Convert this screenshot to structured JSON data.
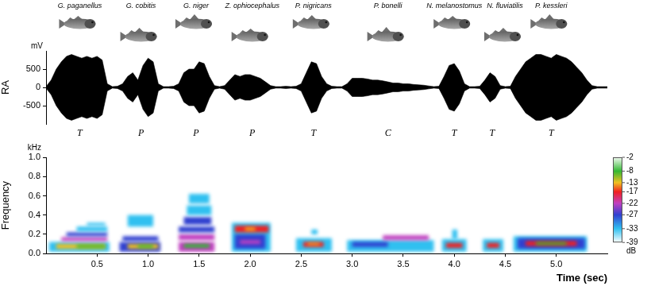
{
  "chart_data": [
    {
      "type": "line",
      "y_label": "RA",
      "unit": "mV",
      "xlim": [
        0,
        5.5
      ],
      "ylim": [
        -1000,
        1000
      ],
      "yticks": [
        -500,
        0,
        500
      ],
      "grid": false,
      "calls": [
        {
          "species": "G. paganellus",
          "call": "T",
          "t": 0.33
        },
        {
          "species": "G. cobitis",
          "call": "P",
          "t": 0.93
        },
        {
          "species": "G. niger",
          "call": "P",
          "t": 1.47
        },
        {
          "species": "Z. ophiocephalus",
          "call": "P",
          "t": 2.02
        },
        {
          "species": "P. nigricans",
          "call": "T",
          "t": 2.62
        },
        {
          "species": "P. bonelli",
          "call": "C",
          "t": 3.35
        },
        {
          "species": "N. melanostomus",
          "call": "T",
          "t": 4.0
        },
        {
          "species": "N. fluviatilis",
          "call": "T",
          "t": 4.37
        },
        {
          "species": "P. kessleri",
          "call": "T",
          "t": 4.95
        }
      ],
      "x": [
        0,
        0.05,
        0.1,
        0.15,
        0.2,
        0.25,
        0.3,
        0.35,
        0.4,
        0.45,
        0.5,
        0.55,
        0.6,
        0.65,
        0.7,
        0.75,
        0.8,
        0.85,
        0.9,
        0.95,
        1.0,
        1.05,
        1.1,
        1.15,
        1.2,
        1.25,
        1.3,
        1.35,
        1.4,
        1.45,
        1.5,
        1.55,
        1.6,
        1.65,
        1.7,
        1.75,
        1.8,
        1.85,
        1.9,
        1.95,
        2.0,
        2.05,
        2.1,
        2.15,
        2.2,
        2.25,
        2.3,
        2.35,
        2.4,
        2.45,
        2.5,
        2.55,
        2.6,
        2.65,
        2.7,
        2.75,
        2.8,
        2.85,
        2.9,
        2.95,
        3.0,
        3.05,
        3.1,
        3.15,
        3.2,
        3.25,
        3.3,
        3.35,
        3.4,
        3.45,
        3.5,
        3.55,
        3.6,
        3.65,
        3.7,
        3.75,
        3.8,
        3.85,
        3.9,
        3.95,
        4.0,
        4.05,
        4.1,
        4.15,
        4.2,
        4.25,
        4.3,
        4.35,
        4.4,
        4.45,
        4.5,
        4.55,
        4.6,
        4.65,
        4.7,
        4.75,
        4.8,
        4.85,
        4.9,
        4.95,
        5.0,
        5.05,
        5.1,
        5.15,
        5.2,
        5.25,
        5.3,
        5.35,
        5.4,
        5.45,
        5.5
      ],
      "series": [
        {
          "color": "#000000",
          "values": [
            20,
            200,
            500,
            700,
            850,
            900,
            850,
            800,
            850,
            800,
            850,
            750,
            100,
            20,
            30,
            100,
            300,
            400,
            200,
            600,
            800,
            700,
            100,
            20,
            20,
            30,
            100,
            400,
            500,
            500,
            700,
            650,
            300,
            50,
            20,
            50,
            200,
            350,
            300,
            350,
            350,
            300,
            250,
            150,
            50,
            20,
            20,
            30,
            20,
            30,
            100,
            400,
            700,
            650,
            300,
            100,
            30,
            20,
            20,
            100,
            250,
            250,
            250,
            230,
            200,
            200,
            180,
            150,
            120,
            120,
            100,
            100,
            80,
            70,
            60,
            40,
            20,
            30,
            300,
            600,
            650,
            450,
            100,
            20,
            20,
            30,
            200,
            400,
            300,
            50,
            20,
            30,
            300,
            500,
            700,
            800,
            900,
            900,
            850,
            800,
            900,
            850,
            800,
            700,
            550,
            400,
            200,
            50,
            20,
            20,
            20
          ]
        },
        {
          "color": "#000000",
          "values": [
            -20,
            -200,
            -500,
            -700,
            -850,
            -900,
            -850,
            -800,
            -850,
            -800,
            -850,
            -750,
            -100,
            -20,
            -30,
            -100,
            -300,
            -400,
            -200,
            -600,
            -800,
            -700,
            -100,
            -20,
            -20,
            -30,
            -100,
            -400,
            -500,
            -500,
            -700,
            -650,
            -300,
            -50,
            -20,
            -50,
            -200,
            -350,
            -300,
            -350,
            -350,
            -300,
            -250,
            -150,
            -50,
            -20,
            -20,
            -30,
            -20,
            -30,
            -100,
            -400,
            -700,
            -650,
            -300,
            -100,
            -30,
            -20,
            -20,
            -100,
            -250,
            -250,
            -250,
            -230,
            -200,
            -200,
            -180,
            -150,
            -120,
            -120,
            -100,
            -100,
            -80,
            -70,
            -60,
            -40,
            -20,
            -30,
            -300,
            -600,
            -650,
            -450,
            -100,
            -20,
            -20,
            -30,
            -200,
            -400,
            -300,
            -50,
            -20,
            -30,
            -300,
            -500,
            -700,
            -800,
            -900,
            -900,
            -850,
            -800,
            -900,
            -850,
            -800,
            -700,
            -550,
            -400,
            -200,
            -50,
            -20,
            -20,
            -20
          ]
        }
      ]
    },
    {
      "type": "heatmap",
      "x_label": "Time (sec)",
      "y_label": "Frequency",
      "unit": "kHz",
      "xlim": [
        0,
        5.5
      ],
      "xticks": [
        0.5,
        {
          "value": 1,
          "label": "1.0"
        },
        1.5,
        {
          "value": 2,
          "label": "2.0"
        },
        2.5,
        {
          "value": 3,
          "label": "3.0"
        },
        3.5,
        {
          "value": 4,
          "label": "4.0"
        },
        4.5,
        {
          "value": 5,
          "label": "5.0"
        }
      ],
      "ylim": [
        0,
        1
      ],
      "yticks": [
        {
          "value": 0,
          "label": "0.0"
        },
        0.2,
        0.4,
        0.6,
        0.8,
        {
          "value": 1,
          "label": "1.0"
        }
      ],
      "grid": false,
      "bands": [
        [
          0.03,
          0.62,
          0.02,
          0.12,
          -33
        ],
        [
          0.1,
          0.58,
          0.05,
          0.1,
          -13
        ],
        [
          0.3,
          0.58,
          0.06,
          0.09,
          -8
        ],
        [
          0.15,
          0.6,
          0.13,
          0.17,
          -22
        ],
        [
          0.2,
          0.6,
          0.18,
          0.22,
          -27
        ],
        [
          0.3,
          0.6,
          0.23,
          0.28,
          -33
        ],
        [
          0.4,
          0.58,
          0.29,
          0.32,
          -33
        ],
        [
          0.72,
          1.12,
          0.02,
          0.12,
          -27
        ],
        [
          0.8,
          1.1,
          0.05,
          0.1,
          -13
        ],
        [
          0.9,
          1.05,
          0.06,
          0.09,
          -8
        ],
        [
          0.75,
          1.1,
          0.13,
          0.18,
          -27
        ],
        [
          0.8,
          1.05,
          0.28,
          0.4,
          -33
        ],
        [
          1.3,
          1.65,
          0.02,
          0.12,
          -22
        ],
        [
          1.35,
          1.6,
          0.06,
          0.1,
          -8
        ],
        [
          1.3,
          1.65,
          0.14,
          0.2,
          -22
        ],
        [
          1.3,
          1.65,
          0.22,
          0.28,
          -27
        ],
        [
          1.35,
          1.62,
          0.3,
          0.38,
          -27
        ],
        [
          1.38,
          1.62,
          0.4,
          0.5,
          -33
        ],
        [
          1.4,
          1.6,
          0.52,
          0.62,
          -33
        ],
        [
          1.82,
          2.2,
          0.02,
          0.32,
          -33
        ],
        [
          1.85,
          2.15,
          0.05,
          0.2,
          -27
        ],
        [
          1.85,
          2.18,
          0.22,
          0.29,
          -17
        ],
        [
          1.9,
          2.1,
          0.1,
          0.14,
          -22
        ],
        [
          1.95,
          2.05,
          0.24,
          0.27,
          -13
        ],
        [
          2.45,
          2.8,
          0.02,
          0.16,
          -33
        ],
        [
          2.52,
          2.72,
          0.07,
          0.12,
          -17
        ],
        [
          2.56,
          2.68,
          0.09,
          0.11,
          -13
        ],
        [
          2.6,
          2.66,
          0.2,
          0.25,
          -33
        ],
        [
          2.95,
          3.8,
          0.02,
          0.14,
          -33
        ],
        [
          3.0,
          3.35,
          0.07,
          0.12,
          -27
        ],
        [
          3.3,
          3.75,
          0.14,
          0.19,
          -22
        ],
        [
          3.88,
          4.12,
          0.02,
          0.15,
          -33
        ],
        [
          3.92,
          4.08,
          0.06,
          0.11,
          -17
        ],
        [
          3.98,
          4.03,
          0.15,
          0.25,
          -33
        ],
        [
          4.28,
          4.48,
          0.02,
          0.15,
          -33
        ],
        [
          4.32,
          4.44,
          0.06,
          0.11,
          -17
        ],
        [
          4.58,
          5.3,
          0.02,
          0.18,
          -33
        ],
        [
          4.62,
          5.28,
          0.05,
          0.16,
          -27
        ],
        [
          4.7,
          5.2,
          0.08,
          0.13,
          -17
        ],
        [
          4.8,
          5.1,
          0.09,
          0.12,
          -8
        ]
      ],
      "colorbar": {
        "label": "dB",
        "range": [
          -39,
          -2
        ],
        "ticks": [
          -2,
          -8,
          -13,
          -17,
          -22,
          -27,
          -33,
          -39
        ],
        "colors": [
          "#f2fbf2",
          "#33b833",
          "#f0c020",
          "#f02020",
          "#c040c0",
          "#3040d0",
          "#30c0f0",
          "#ffffff"
        ]
      }
    }
  ]
}
